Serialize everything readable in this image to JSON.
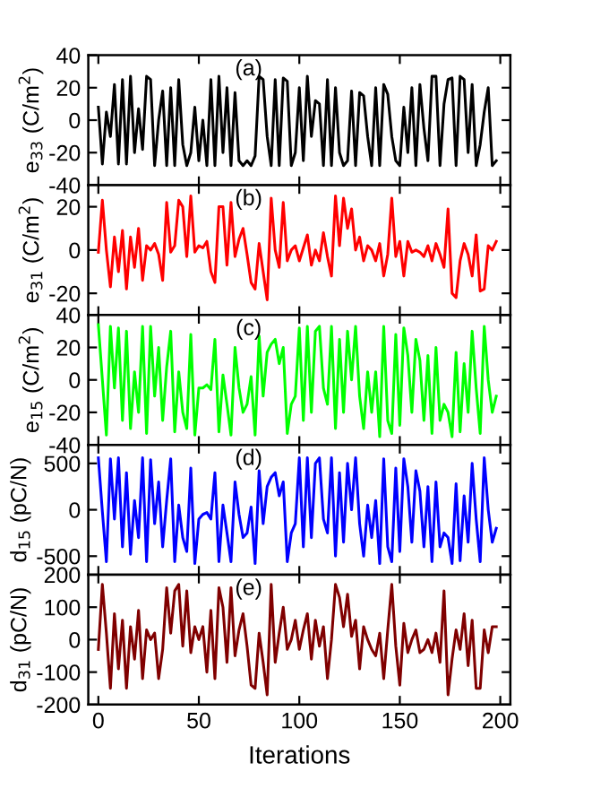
{
  "chart_data": [
    {
      "type": "line",
      "ylabel": "e$_{33}$ (C/m$^{2}$)",
      "annotations": [
        "(a)"
      ],
      "xlim": [
        -5,
        205
      ],
      "xticks": [
        0,
        50,
        100,
        150,
        200
      ],
      "ylim": [
        -40,
        40
      ],
      "yticks": [
        -40,
        -20,
        0,
        20,
        40
      ],
      "tick_labels": "y",
      "x": [
        0,
        2,
        4,
        6,
        8,
        10,
        12,
        14,
        16,
        18,
        20,
        22,
        24,
        26,
        28,
        30,
        32,
        34,
        36,
        38,
        40,
        42,
        44,
        46,
        48,
        50,
        52,
        54,
        56,
        58,
        60,
        62,
        64,
        66,
        68,
        70,
        72,
        74,
        76,
        78,
        80,
        82,
        84,
        86,
        88,
        90,
        92,
        94,
        96,
        98,
        100,
        102,
        104,
        106,
        108,
        110,
        112,
        114,
        116,
        118,
        120,
        122,
        124,
        126,
        128,
        130,
        132,
        134,
        136,
        138,
        140,
        142,
        144,
        146,
        148,
        150,
        152,
        154,
        156,
        158,
        160,
        162,
        164,
        166,
        168,
        170,
        172,
        174,
        176,
        178,
        180,
        182,
        184,
        186,
        188,
        190,
        192,
        194,
        196,
        198
      ],
      "series": [
        {
          "color": "#000000",
          "values": [
            8,
            -27,
            5,
            -10,
            22,
            -27,
            25,
            -27,
            27,
            -20,
            7,
            -18,
            27,
            25,
            -28,
            0,
            18,
            -28,
            20,
            -28,
            25,
            -15,
            -28,
            -20,
            8,
            -25,
            0,
            -28,
            25,
            -28,
            27,
            -20,
            20,
            -28,
            17,
            -25,
            -28,
            -25,
            -28,
            -22,
            27,
            25,
            -10,
            -28,
            25,
            -28,
            26,
            24,
            -28,
            -20,
            20,
            -25,
            27,
            -10,
            12,
            10,
            -28,
            25,
            -28,
            20,
            -20,
            -28,
            -25,
            18,
            -28,
            17,
            15,
            -10,
            -28,
            20,
            -28,
            22,
            16,
            -10,
            -25,
            -28,
            8,
            -20,
            20,
            -28,
            22,
            -5,
            -25,
            27,
            27,
            -28,
            10,
            25,
            26,
            -28,
            27,
            25,
            -20,
            22,
            -28,
            -15,
            5,
            20,
            -28,
            -25
          ]
        }
      ]
    },
    {
      "type": "line",
      "ylabel": "e$_{31}$ (C/m$^{2}$)",
      "annotations": [
        "(b)"
      ],
      "xlim": [
        -5,
        205
      ],
      "xticks": [
        0,
        50,
        100,
        150,
        200
      ],
      "ylim": [
        -30,
        30
      ],
      "yticks": [
        -20,
        0,
        20
      ],
      "tick_labels": "y",
      "x": [
        0,
        2,
        4,
        6,
        8,
        10,
        12,
        14,
        16,
        18,
        20,
        22,
        24,
        26,
        28,
        30,
        32,
        34,
        36,
        38,
        40,
        42,
        44,
        46,
        48,
        50,
        52,
        54,
        56,
        58,
        60,
        62,
        64,
        66,
        68,
        70,
        72,
        74,
        76,
        78,
        80,
        82,
        84,
        86,
        88,
        90,
        92,
        94,
        96,
        98,
        100,
        102,
        104,
        106,
        108,
        110,
        112,
        114,
        116,
        118,
        120,
        122,
        124,
        126,
        128,
        130,
        132,
        134,
        136,
        138,
        140,
        142,
        144,
        146,
        148,
        150,
        152,
        154,
        156,
        158,
        160,
        162,
        164,
        166,
        168,
        170,
        172,
        174,
        176,
        178,
        180,
        182,
        184,
        186,
        188,
        190,
        192,
        194,
        196,
        198
      ],
      "series": [
        {
          "color": "#ff0000",
          "values": [
            -1,
            23,
            0,
            -17,
            6,
            -10,
            9,
            -18,
            6,
            -8,
            10,
            -14,
            2,
            0,
            3,
            -2,
            -14,
            22,
            -1,
            2,
            23,
            20,
            -3,
            25,
            -1,
            2,
            1,
            4,
            -10,
            -15,
            20,
            20,
            -7,
            22,
            -3,
            5,
            10,
            -2,
            -15,
            -18,
            3,
            -10,
            -23,
            24,
            0,
            -8,
            22,
            -5,
            0,
            2,
            -5,
            1,
            7,
            -7,
            0,
            -5,
            8,
            -3,
            -12,
            25,
            2,
            24,
            10,
            19,
            0,
            6,
            -5,
            2,
            0,
            -5,
            3,
            -12,
            -2,
            24,
            -3,
            4,
            -12,
            4,
            -1,
            0,
            -1,
            -3,
            2,
            -5,
            3,
            -2,
            -8,
            19,
            -20,
            -22,
            -5,
            3,
            -2,
            -12,
            7,
            -19,
            -18,
            2,
            0,
            4
          ]
        }
      ]
    },
    {
      "type": "line",
      "ylabel": "e$_{15}$ (C/m$^{2}$)",
      "annotations": [
        "(c)"
      ],
      "xlim": [
        -5,
        205
      ],
      "xticks": [
        0,
        50,
        100,
        150,
        200
      ],
      "ylim": [
        -40,
        40
      ],
      "yticks": [
        -40,
        -20,
        0,
        20,
        40
      ],
      "tick_labels": "y",
      "x": [
        0,
        2,
        4,
        6,
        8,
        10,
        12,
        14,
        16,
        18,
        20,
        22,
        24,
        26,
        28,
        30,
        32,
        34,
        36,
        38,
        40,
        42,
        44,
        46,
        48,
        50,
        52,
        54,
        56,
        58,
        60,
        62,
        64,
        66,
        68,
        70,
        72,
        74,
        76,
        78,
        80,
        82,
        84,
        86,
        88,
        90,
        92,
        94,
        96,
        98,
        100,
        102,
        104,
        106,
        108,
        110,
        112,
        114,
        116,
        118,
        120,
        122,
        124,
        126,
        128,
        130,
        132,
        134,
        136,
        138,
        140,
        142,
        144,
        146,
        148,
        150,
        152,
        154,
        156,
        158,
        160,
        162,
        164,
        166,
        168,
        170,
        172,
        174,
        176,
        178,
        180,
        182,
        184,
        186,
        188,
        190,
        192,
        194,
        196,
        198
      ],
      "series": [
        {
          "color": "#00ff00",
          "values": [
            34,
            0,
            -34,
            33,
            -5,
            32,
            -25,
            30,
            -30,
            5,
            -20,
            33,
            -33,
            33,
            -10,
            20,
            -25,
            8,
            30,
            -32,
            5,
            -20,
            -30,
            28,
            -34,
            -5,
            -5,
            -3,
            -6,
            25,
            -32,
            3,
            -15,
            -34,
            20,
            -5,
            -20,
            -15,
            2,
            -34,
            27,
            -10,
            17,
            22,
            25,
            10,
            20,
            -33,
            -15,
            -10,
            32,
            -25,
            33,
            -20,
            30,
            33,
            -5,
            -15,
            33,
            -30,
            25,
            -20,
            30,
            0,
            33,
            -10,
            -30,
            5,
            -20,
            5,
            -35,
            33,
            -25,
            -33,
            28,
            -28,
            32,
            15,
            -20,
            25,
            12,
            -25,
            15,
            -33,
            20,
            -25,
            -15,
            -20,
            -35,
            17,
            -32,
            10,
            -20,
            30,
            -5,
            -33,
            33,
            0,
            -20,
            -10
          ]
        }
      ]
    },
    {
      "type": "line",
      "ylabel": "d$_{15}$ (pC/N)",
      "annotations": [
        "(d)"
      ],
      "xlim": [
        -5,
        205
      ],
      "xticks": [
        0,
        50,
        100,
        150,
        200
      ],
      "ylim": [
        -700,
        700
      ],
      "yticks": [
        -500,
        0,
        500
      ],
      "tick_labels": "y",
      "x": [
        0,
        2,
        4,
        6,
        8,
        10,
        12,
        14,
        16,
        18,
        20,
        22,
        24,
        26,
        28,
        30,
        32,
        34,
        36,
        38,
        40,
        42,
        44,
        46,
        48,
        50,
        52,
        54,
        56,
        58,
        60,
        62,
        64,
        66,
        68,
        70,
        72,
        74,
        76,
        78,
        80,
        82,
        84,
        86,
        88,
        90,
        92,
        94,
        96,
        98,
        100,
        102,
        104,
        106,
        108,
        110,
        112,
        114,
        116,
        118,
        120,
        122,
        124,
        126,
        128,
        130,
        132,
        134,
        136,
        138,
        140,
        142,
        144,
        146,
        148,
        150,
        152,
        154,
        156,
        158,
        160,
        162,
        164,
        166,
        168,
        170,
        172,
        174,
        176,
        178,
        180,
        182,
        184,
        186,
        188,
        190,
        192,
        194,
        196,
        198
      ],
      "series": [
        {
          "color": "#0000ff",
          "values": [
            560,
            -20,
            -560,
            550,
            -100,
            560,
            -400,
            400,
            -480,
            100,
            -300,
            560,
            -560,
            540,
            -150,
            300,
            -400,
            100,
            550,
            -560,
            50,
            -300,
            -450,
            450,
            -580,
            -100,
            -50,
            -30,
            -100,
            400,
            -560,
            50,
            -250,
            -560,
            300,
            -50,
            -300,
            -250,
            30,
            -580,
            420,
            -150,
            250,
            350,
            400,
            150,
            300,
            -560,
            -250,
            -150,
            560,
            -400,
            560,
            -300,
            500,
            560,
            -100,
            -250,
            560,
            -500,
            400,
            -350,
            500,
            0,
            560,
            -150,
            -500,
            50,
            -300,
            100,
            -580,
            550,
            -400,
            -560,
            450,
            -450,
            550,
            250,
            -350,
            420,
            200,
            -400,
            250,
            -560,
            300,
            -400,
            -250,
            -300,
            -580,
            280,
            -550,
            150,
            -350,
            500,
            -100,
            -560,
            560,
            0,
            -350,
            -200
          ]
        }
      ]
    },
    {
      "type": "line",
      "xlabel": "Iterations",
      "ylabel": "d$_{31}$ (pC/N)",
      "annotations": [
        "(e)"
      ],
      "xlim": [
        -5,
        205
      ],
      "xticks": [
        0,
        50,
        100,
        150,
        200
      ],
      "ylim": [
        -200,
        200
      ],
      "yticks": [
        -200,
        -100,
        0,
        100,
        200
      ],
      "x": [
        0,
        2,
        4,
        6,
        8,
        10,
        12,
        14,
        16,
        18,
        20,
        22,
        24,
        26,
        28,
        30,
        32,
        34,
        36,
        38,
        40,
        42,
        44,
        46,
        48,
        50,
        52,
        54,
        56,
        58,
        60,
        62,
        64,
        66,
        68,
        70,
        72,
        74,
        76,
        78,
        80,
        82,
        84,
        86,
        88,
        90,
        92,
        94,
        96,
        98,
        100,
        102,
        104,
        106,
        108,
        110,
        112,
        114,
        116,
        118,
        120,
        122,
        124,
        126,
        128,
        130,
        132,
        134,
        136,
        138,
        140,
        142,
        144,
        146,
        148,
        150,
        152,
        154,
        156,
        158,
        160,
        162,
        164,
        166,
        168,
        170,
        172,
        174,
        176,
        178,
        180,
        182,
        184,
        186,
        188,
        190,
        192,
        194,
        196,
        198
      ],
      "series": [
        {
          "color": "#800000",
          "values": [
            -30,
            170,
            20,
            -150,
            80,
            -90,
            60,
            -150,
            40,
            -60,
            90,
            -120,
            30,
            0,
            20,
            -120,
            -30,
            160,
            20,
            150,
            170,
            -20,
            150,
            -40,
            40,
            0,
            40,
            -100,
            90,
            -120,
            160,
            100,
            -70,
            160,
            -50,
            30,
            80,
            -20,
            -140,
            -150,
            20,
            -70,
            -170,
            170,
            -70,
            20,
            100,
            -30,
            0,
            60,
            -30,
            30,
            80,
            -60,
            60,
            -20,
            40,
            -120,
            0,
            170,
            130,
            40,
            140,
            10,
            60,
            -90,
            40,
            0,
            -30,
            -50,
            20,
            -120,
            30,
            170,
            -20,
            -140,
            50,
            -40,
            0,
            30,
            -40,
            -30,
            0,
            -40,
            20,
            -70,
            150,
            -170,
            -60,
            30,
            -30,
            80,
            -80,
            60,
            -150,
            -150,
            30,
            -40,
            40,
            40
          ]
        }
      ]
    }
  ]
}
